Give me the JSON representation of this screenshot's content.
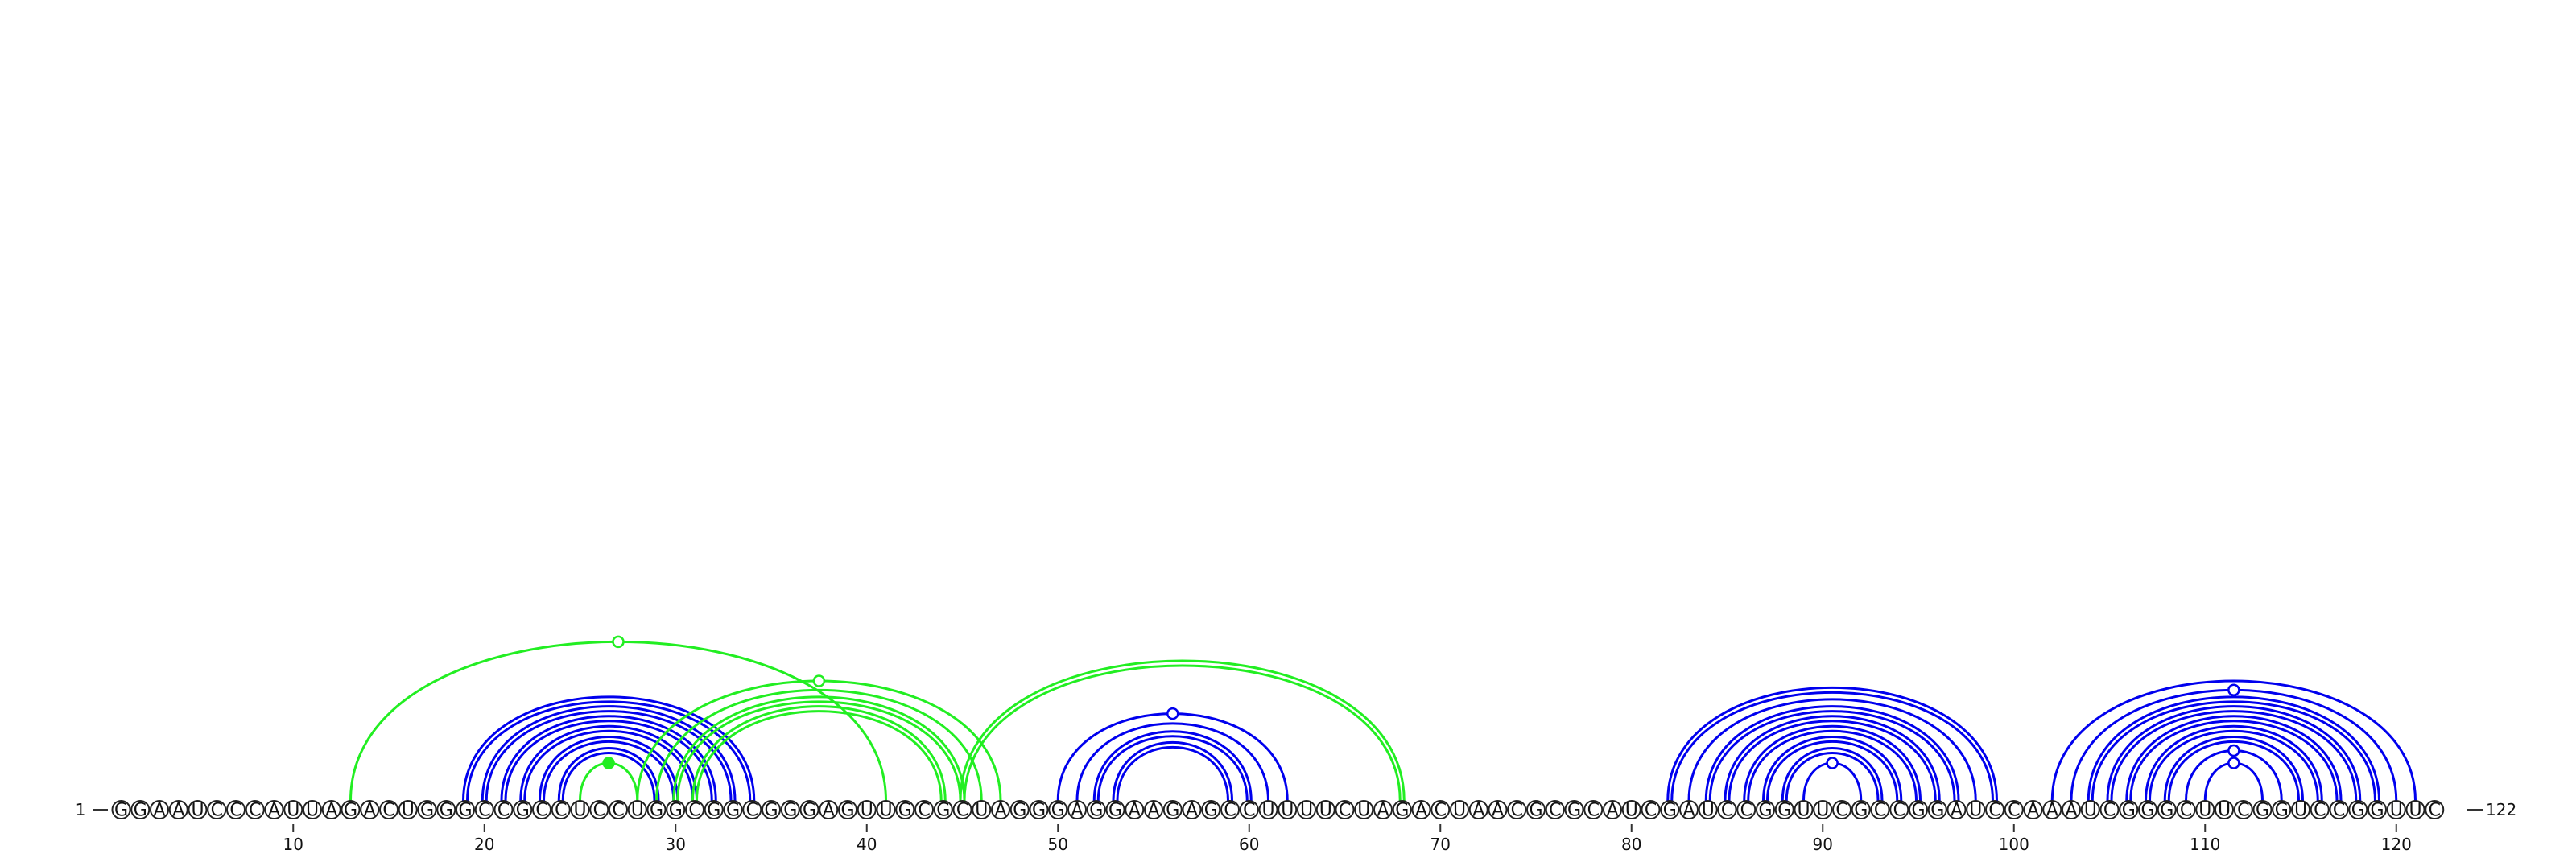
{
  "diagram": {
    "sequence": "GGAAUCCCAUUAGACUGGGCCGCCUCCUGGCGGCGGGAGUUGCGCUAGGGAGGAAGAGCCUUUUCUAGACUAACGCGCAUCGAUCCGGUUCGCCGGAUCCAAAUCGGGCUUCGGUCCGGUUC",
    "start_label": "1",
    "end_label": "122",
    "ticks": [
      10,
      20,
      30,
      40,
      50,
      60,
      70,
      80,
      90,
      100,
      110,
      120
    ],
    "colors": {
      "blue": "#0000ee",
      "green": "#22ee22"
    },
    "arcs": [
      {
        "i": 19,
        "j": 34,
        "color": "blue",
        "double": true
      },
      {
        "i": 20,
        "j": 33,
        "color": "blue",
        "double": true
      },
      {
        "i": 21,
        "j": 32,
        "color": "blue",
        "double": true
      },
      {
        "i": 22,
        "j": 31,
        "color": "blue",
        "double": true
      },
      {
        "i": 23,
        "j": 30,
        "color": "blue",
        "double": true
      },
      {
        "i": 24,
        "j": 29,
        "color": "blue",
        "double": true
      },
      {
        "i": 13,
        "j": 41,
        "color": "green",
        "double": false,
        "marker": "open"
      },
      {
        "i": 25,
        "j": 28,
        "color": "green",
        "double": false,
        "marker": "filled"
      },
      {
        "i": 28,
        "j": 47,
        "color": "green",
        "double": false,
        "marker": "open"
      },
      {
        "i": 29,
        "j": 46,
        "color": "green",
        "double": false
      },
      {
        "i": 30,
        "j": 45,
        "color": "green",
        "double": true
      },
      {
        "i": 31,
        "j": 44,
        "color": "green",
        "double": true
      },
      {
        "i": 45,
        "j": 68,
        "color": "green",
        "double": true
      },
      {
        "i": 50,
        "j": 62,
        "color": "blue",
        "double": false,
        "marker": "open"
      },
      {
        "i": 51,
        "j": 61,
        "color": "blue",
        "double": false
      },
      {
        "i": 52,
        "j": 60,
        "color": "blue",
        "double": true
      },
      {
        "i": 53,
        "j": 59,
        "color": "blue",
        "double": true
      },
      {
        "i": 82,
        "j": 99,
        "color": "blue",
        "double": true
      },
      {
        "i": 83,
        "j": 98,
        "color": "blue",
        "double": false
      },
      {
        "i": 84,
        "j": 97,
        "color": "blue",
        "double": true
      },
      {
        "i": 85,
        "j": 96,
        "color": "blue",
        "double": true
      },
      {
        "i": 86,
        "j": 95,
        "color": "blue",
        "double": true
      },
      {
        "i": 87,
        "j": 94,
        "color": "blue",
        "double": true
      },
      {
        "i": 88,
        "j": 93,
        "color": "blue",
        "double": true
      },
      {
        "i": 89,
        "j": 92,
        "color": "blue",
        "double": false,
        "marker": "open"
      },
      {
        "i": 102,
        "j": 121,
        "color": "blue",
        "double": false
      },
      {
        "i": 103,
        "j": 120,
        "color": "blue",
        "double": false,
        "marker": "open"
      },
      {
        "i": 104,
        "j": 119,
        "color": "blue",
        "double": true
      },
      {
        "i": 105,
        "j": 118,
        "color": "blue",
        "double": true
      },
      {
        "i": 106,
        "j": 117,
        "color": "blue",
        "double": true
      },
      {
        "i": 107,
        "j": 116,
        "color": "blue",
        "double": true
      },
      {
        "i": 108,
        "j": 115,
        "color": "blue",
        "double": true
      },
      {
        "i": 109,
        "j": 114,
        "color": "blue",
        "double": false,
        "marker": "open"
      },
      {
        "i": 110,
        "j": 113,
        "color": "blue",
        "double": false,
        "marker": "open"
      }
    ]
  }
}
